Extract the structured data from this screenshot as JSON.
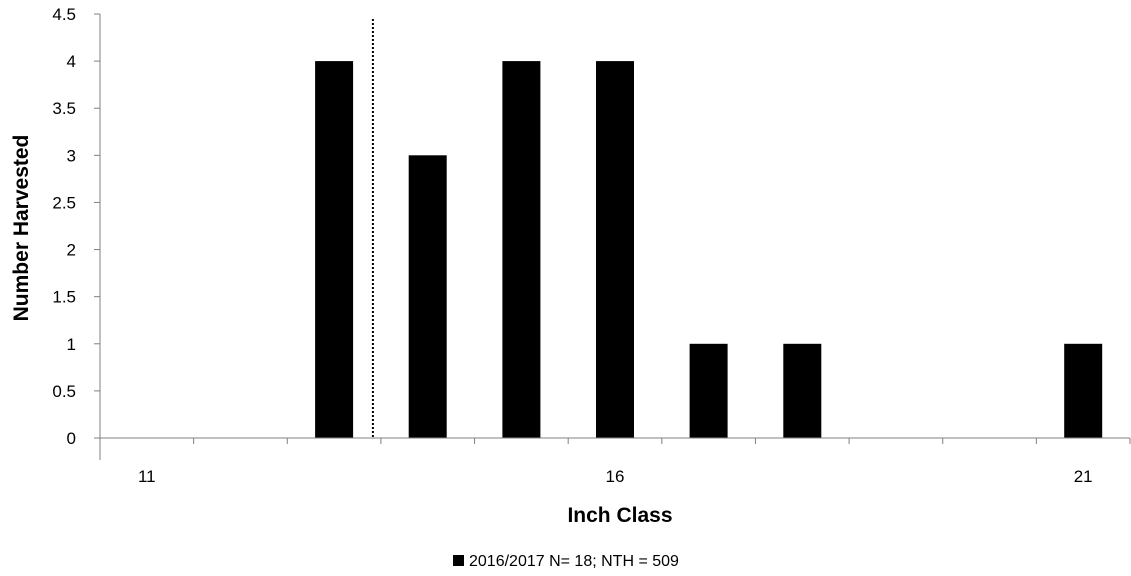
{
  "chart_data": {
    "type": "bar",
    "title": "",
    "xlabel": "Inch Class",
    "ylabel": "Number Harvested",
    "categories": [
      11,
      12,
      13,
      14,
      15,
      16,
      17,
      18,
      19,
      20,
      21
    ],
    "x_tick_labels": [
      "11",
      "16",
      "21"
    ],
    "y_tick_labels": [
      "0",
      "0.5",
      "1",
      "1.5",
      "2",
      "2.5",
      "3",
      "3.5",
      "4",
      "4.5"
    ],
    "ylim": [
      0,
      4.5
    ],
    "y_step": 0.5,
    "series": [
      {
        "name": "2016/2017 N= 18; NTH = 509",
        "color": "#000000",
        "values": [
          0,
          0,
          4,
          3,
          4,
          4,
          1,
          1,
          0,
          0,
          1
        ]
      }
    ],
    "reference_line": {
      "x": 13,
      "style": "dotted"
    },
    "grid": false,
    "legend": {
      "position": "bottom-center",
      "label": "2016/2017 N= 18; NTH = 509"
    }
  }
}
